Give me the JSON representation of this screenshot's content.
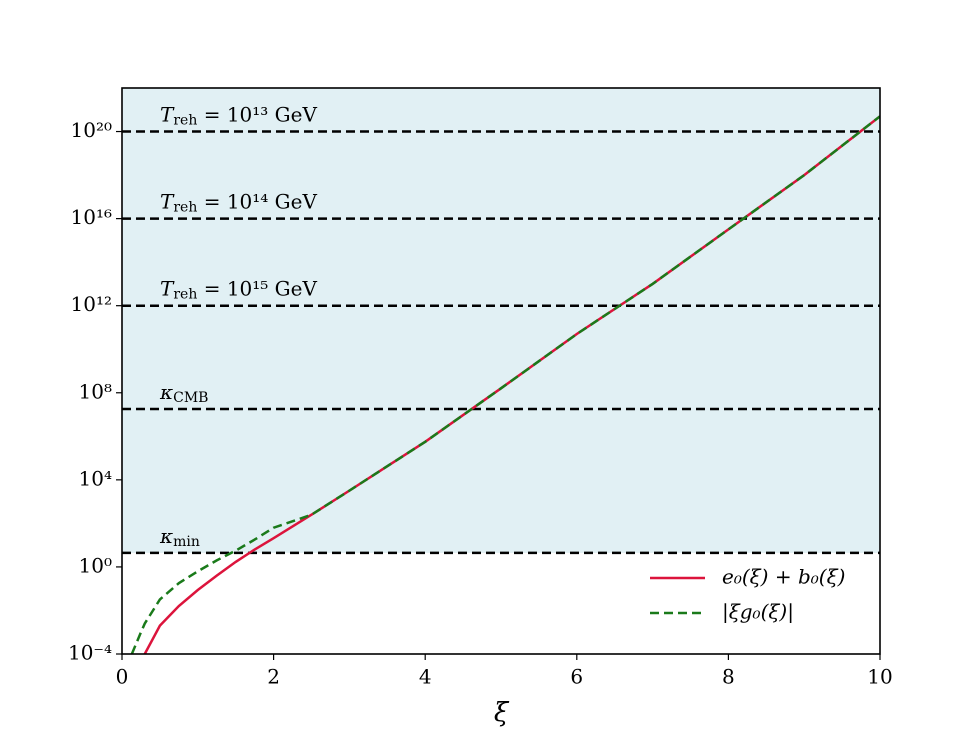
{
  "chart_data": {
    "type": "line",
    "xlabel": "ξ",
    "log_y": true,
    "xlim": [
      0,
      10
    ],
    "xticks": [
      0,
      2,
      4,
      6,
      8,
      10
    ],
    "ylim": [
      0.0001,
      1e+22
    ],
    "yticks": [
      {
        "value": 0.0001,
        "label": "10⁻⁴"
      },
      {
        "value": 1,
        "label": "10⁰"
      },
      {
        "value": 10000,
        "label": "10⁴"
      },
      {
        "value": 100000000,
        "label": "10⁸"
      },
      {
        "value": 1000000000000,
        "label": "10¹²"
      },
      {
        "value": 1e+16,
        "label": "10¹⁶"
      },
      {
        "value": 1e+20,
        "label": "10²⁰"
      }
    ],
    "shade_color": "#e1f0f4",
    "hlines": [
      {
        "value": 1e+20,
        "symbol": "T",
        "subscript": "reh",
        "text": " = 10¹³ GeV"
      },
      {
        "value": 1e+16,
        "symbol": "T",
        "subscript": "reh",
        "text": " = 10¹⁴ GeV"
      },
      {
        "value": 1000000000000,
        "symbol": "T",
        "subscript": "reh",
        "text": " = 10¹⁵ GeV"
      },
      {
        "value": 18000000,
        "symbol": "κ",
        "subscript": "CMB"
      },
      {
        "value": 4.4,
        "symbol": "κ",
        "subscript": "min"
      }
    ],
    "x": [
      0.13,
      0.25,
      0.3,
      0.5,
      0.75,
      1,
      1.25,
      1.5,
      1.75,
      2,
      2.5,
      3,
      4,
      5,
      6,
      7,
      8,
      9,
      10
    ],
    "series": [
      {
        "name": "e₀(ξ) + b₀(ξ)",
        "color": "#dc143c",
        "dash": false,
        "values": [
          null,
          null,
          0.0001,
          0.002,
          0.016,
          0.087,
          0.4,
          1.7,
          6.3,
          21,
          250,
          3200,
          560000,
          160000000,
          50000000000,
          10000000000000,
          3200000000000000,
          1e+18,
          5e+20
        ]
      },
      {
        "name": "|ξg₀(ξ)|",
        "color": "#1a7a1a",
        "dash": true,
        "values": [
          0.0001,
          0.001,
          0.0025,
          0.032,
          0.18,
          0.63,
          2,
          5.6,
          18,
          63,
          250,
          3200,
          560000,
          160000000,
          50000000000,
          10000000000000,
          3200000000000000,
          1e+18,
          5e+20
        ]
      }
    ],
    "legend": "lower right"
  }
}
